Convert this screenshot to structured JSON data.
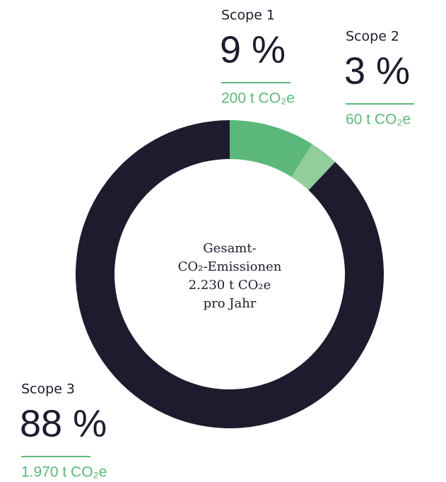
{
  "chart_data": {
    "type": "donut",
    "center_text": [
      "Gesamt-",
      "CO₂-Emissionen",
      "2.230 t CO₂e",
      "pro Jahr"
    ],
    "series": [
      {
        "name": "Scope 1",
        "color": "#5cb87a",
        "values": [
          9
        ],
        "value_labels": [
          "9 %"
        ],
        "amount_label": "200 t CO₂e"
      },
      {
        "name": "Scope 2",
        "color": "#92cd9c",
        "values": [
          3
        ],
        "value_labels": [
          "3 %"
        ],
        "amount_label": "60 t CO₂e"
      },
      {
        "name": "Scope 3",
        "color": "#1e1b2e",
        "values": [
          88
        ],
        "value_labels": [
          "88 %"
        ],
        "amount_label": "1.970 t CO₂e"
      }
    ]
  }
}
